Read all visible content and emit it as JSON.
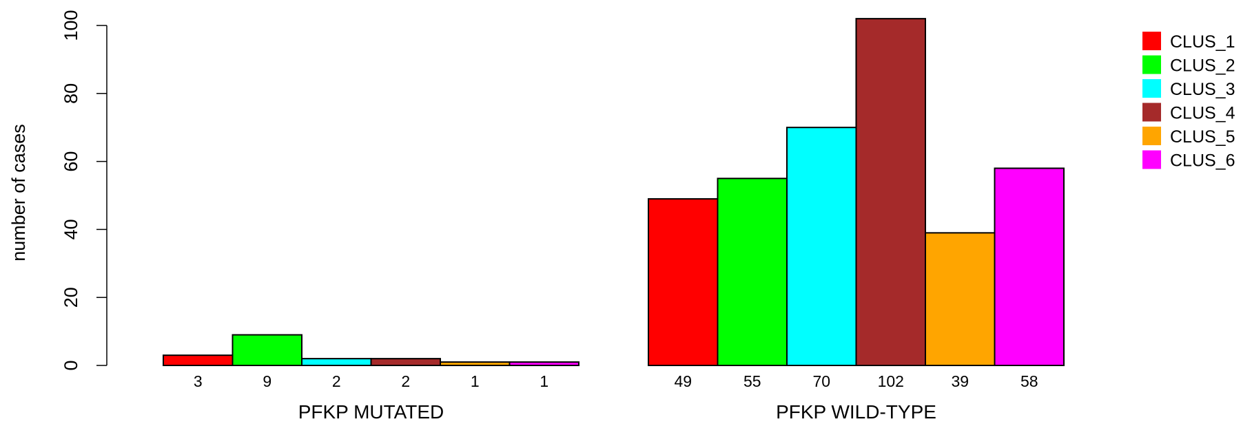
{
  "chart_data": {
    "type": "bar",
    "ylabel": "number of cases",
    "ylim": [
      0,
      100
    ],
    "yticks": [
      0,
      20,
      40,
      60,
      80,
      100
    ],
    "groups": [
      {
        "label": "PFKP MUTATED",
        "values": [
          3,
          9,
          2,
          2,
          1,
          1
        ]
      },
      {
        "label": "PFKP WILD-TYPE",
        "values": [
          49,
          55,
          70,
          102,
          39,
          58
        ]
      }
    ],
    "series": [
      {
        "name": "CLUS_1",
        "color": "#ff0000"
      },
      {
        "name": "CLUS_2",
        "color": "#00ff00"
      },
      {
        "name": "CLUS_3",
        "color": "#00ffff"
      },
      {
        "name": "CLUS_4",
        "color": "#a52a2a"
      },
      {
        "name": "CLUS_5",
        "color": "#ffa500"
      },
      {
        "name": "CLUS_6",
        "color": "#ff00ff"
      }
    ],
    "legend_position": "top-right",
    "grid": false
  }
}
